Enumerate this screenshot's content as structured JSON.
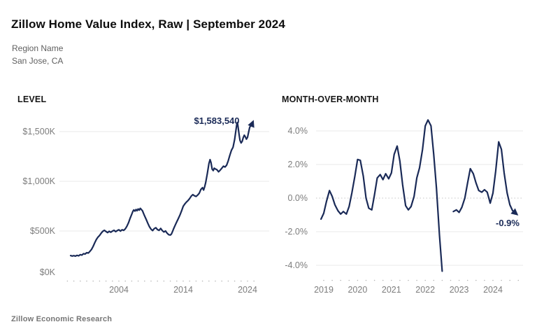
{
  "header": {
    "title": "Zillow Home Value Index, Raw | September 2024",
    "region_label": "Region Name",
    "region_value": "San Jose, CA"
  },
  "footer": {
    "source": "Zillow Economic Research"
  },
  "colors": {
    "line": "#1a2a57",
    "grid": "#eaeaea",
    "zero_line": "#c4c4c4",
    "tick_dot": "#b5b5b5",
    "axis_text": "#7d7d7d",
    "end_label": "#1a2a57"
  },
  "chart_data": [
    {
      "id": "level",
      "type": "line",
      "title": "LEVEL",
      "units": "USD thousands",
      "end_label": "$1,583,540",
      "end_value": 1583540,
      "x_range": [
        1996.5,
        2024.75
      ],
      "y_range": [
        0,
        1650
      ],
      "x_ticks": [
        2004,
        2014,
        2024
      ],
      "x_minor_tick_interval_years": 1,
      "y_ticks": [
        {
          "label": "$1,500K",
          "value": 1500,
          "line": true
        },
        {
          "label": "$1,000K",
          "value": 1000,
          "line": true
        },
        {
          "label": "$500K",
          "value": 500,
          "line": true
        },
        {
          "label": "$0K",
          "value": 0,
          "line": false
        }
      ],
      "segments": [
        [
          [
            1996.5,
            253
          ],
          [
            1996.75,
            248
          ],
          [
            1997.0,
            252
          ],
          [
            1997.25,
            247
          ],
          [
            1997.5,
            255
          ],
          [
            1997.75,
            250
          ],
          [
            1998.0,
            262
          ],
          [
            1998.25,
            258
          ],
          [
            1998.5,
            272
          ],
          [
            1998.75,
            268
          ],
          [
            1999.0,
            282
          ],
          [
            1999.25,
            278
          ],
          [
            1999.5,
            295
          ],
          [
            1999.75,
            315
          ],
          [
            2000.0,
            345
          ],
          [
            2000.25,
            382
          ],
          [
            2000.5,
            415
          ],
          [
            2000.75,
            438
          ],
          [
            2001.0,
            455
          ],
          [
            2001.25,
            478
          ],
          [
            2001.5,
            497
          ],
          [
            2001.75,
            507
          ],
          [
            2002.0,
            495
          ],
          [
            2002.25,
            484
          ],
          [
            2002.5,
            497
          ],
          [
            2002.75,
            487
          ],
          [
            2003.0,
            499
          ],
          [
            2003.25,
            507
          ],
          [
            2003.5,
            494
          ],
          [
            2003.75,
            504
          ],
          [
            2004.0,
            512
          ],
          [
            2004.25,
            499
          ],
          [
            2004.5,
            513
          ],
          [
            2004.75,
            506
          ],
          [
            2005.0,
            522
          ],
          [
            2005.25,
            548
          ],
          [
            2005.5,
            583
          ],
          [
            2005.75,
            628
          ],
          [
            2006.0,
            668
          ],
          [
            2006.17,
            697
          ],
          [
            2006.33,
            712
          ],
          [
            2006.5,
            700
          ],
          [
            2006.67,
            716
          ],
          [
            2006.83,
            704
          ],
          [
            2007.0,
            722
          ],
          [
            2007.17,
            710
          ],
          [
            2007.33,
            728
          ],
          [
            2007.5,
            716
          ],
          [
            2007.67,
            703
          ],
          [
            2007.83,
            678
          ],
          [
            2008.0,
            652
          ],
          [
            2008.25,
            616
          ],
          [
            2008.5,
            578
          ],
          [
            2008.75,
            543
          ],
          [
            2009.0,
            518
          ],
          [
            2009.25,
            504
          ],
          [
            2009.5,
            524
          ],
          [
            2009.75,
            533
          ],
          [
            2010.0,
            514
          ],
          [
            2010.25,
            506
          ],
          [
            2010.5,
            526
          ],
          [
            2010.75,
            504
          ],
          [
            2011.0,
            490
          ],
          [
            2011.25,
            501
          ],
          [
            2011.5,
            478
          ],
          [
            2011.75,
            463
          ],
          [
            2012.0,
            459
          ],
          [
            2012.17,
            470
          ],
          [
            2012.33,
            492
          ],
          [
            2012.5,
            521
          ],
          [
            2012.75,
            558
          ],
          [
            2013.0,
            592
          ],
          [
            2013.25,
            626
          ],
          [
            2013.5,
            661
          ],
          [
            2013.75,
            703
          ],
          [
            2014.0,
            748
          ],
          [
            2014.25,
            772
          ],
          [
            2014.5,
            791
          ],
          [
            2014.75,
            806
          ],
          [
            2015.0,
            826
          ],
          [
            2015.25,
            851
          ],
          [
            2015.5,
            866
          ],
          [
            2015.75,
            854
          ],
          [
            2016.0,
            848
          ],
          [
            2016.25,
            861
          ],
          [
            2016.5,
            880
          ],
          [
            2016.75,
            918
          ],
          [
            2017.0,
            936
          ],
          [
            2017.17,
            912
          ],
          [
            2017.33,
            942
          ],
          [
            2017.5,
            988
          ],
          [
            2017.75,
            1078
          ],
          [
            2018.0,
            1178
          ],
          [
            2018.17,
            1218
          ],
          [
            2018.33,
            1188
          ],
          [
            2018.5,
            1122
          ],
          [
            2018.67,
            1108
          ],
          [
            2018.83,
            1132
          ],
          [
            2019.0,
            1124
          ],
          [
            2019.25,
            1116
          ],
          [
            2019.5,
            1096
          ],
          [
            2019.75,
            1112
          ],
          [
            2020.0,
            1132
          ],
          [
            2020.25,
            1152
          ],
          [
            2020.5,
            1144
          ],
          [
            2020.75,
            1162
          ],
          [
            2021.0,
            1206
          ],
          [
            2021.25,
            1262
          ],
          [
            2021.5,
            1312
          ],
          [
            2021.75,
            1342
          ],
          [
            2022.0,
            1422
          ],
          [
            2022.17,
            1502
          ],
          [
            2022.33,
            1572
          ],
          [
            2022.42,
            1592
          ],
          [
            2022.5,
            1562
          ],
          [
            2022.67,
            1478
          ],
          [
            2022.83,
            1412
          ],
          [
            2023.0,
            1386
          ],
          [
            2023.17,
            1402
          ],
          [
            2023.33,
            1438
          ],
          [
            2023.5,
            1464
          ],
          [
            2023.67,
            1446
          ],
          [
            2023.83,
            1424
          ],
          [
            2024.0,
            1442
          ],
          [
            2024.17,
            1496
          ],
          [
            2024.33,
            1540
          ],
          [
            2024.5,
            1562
          ],
          [
            2024.67,
            1572
          ],
          [
            2024.75,
            1584
          ]
        ]
      ]
    },
    {
      "id": "mom",
      "type": "line",
      "title": "MONTH-OVER-MONTH",
      "units": "percent",
      "end_label": "-0.9%",
      "end_value": -0.9,
      "x_range": [
        2018.9,
        2024.75
      ],
      "y_range": [
        -4.6,
        4.9
      ],
      "x_ticks": [
        2019,
        2020,
        2021,
        2022,
        2023,
        2024
      ],
      "x_minor_tick_interval_years": 0.25,
      "y_ticks": [
        {
          "label": "4.0%",
          "value": 4,
          "line": true
        },
        {
          "label": "2.0%",
          "value": 2,
          "line": true
        },
        {
          "label": "0.0%",
          "value": 0,
          "line": "dotted"
        },
        {
          "label": "-2.0%",
          "value": -2,
          "line": true
        },
        {
          "label": "-4.0%",
          "value": -4,
          "line": true
        }
      ],
      "segments": [
        [
          [
            2018.92,
            -1.25
          ],
          [
            2019.0,
            -0.9
          ],
          [
            2019.08,
            -0.2
          ],
          [
            2019.17,
            0.45
          ],
          [
            2019.25,
            0.1
          ],
          [
            2019.33,
            -0.4
          ],
          [
            2019.42,
            -0.75
          ],
          [
            2019.5,
            -0.95
          ],
          [
            2019.58,
            -0.8
          ],
          [
            2019.67,
            -0.95
          ],
          [
            2019.75,
            -0.5
          ],
          [
            2019.83,
            0.3
          ],
          [
            2019.92,
            1.3
          ],
          [
            2020.0,
            2.3
          ],
          [
            2020.08,
            2.25
          ],
          [
            2020.17,
            1.3
          ],
          [
            2020.25,
            0.0
          ],
          [
            2020.33,
            -0.6
          ],
          [
            2020.42,
            -0.7
          ],
          [
            2020.5,
            0.2
          ],
          [
            2020.58,
            1.2
          ],
          [
            2020.67,
            1.4
          ],
          [
            2020.75,
            1.1
          ],
          [
            2020.83,
            1.45
          ],
          [
            2020.92,
            1.15
          ],
          [
            2021.0,
            1.5
          ],
          [
            2021.08,
            2.6
          ],
          [
            2021.17,
            3.1
          ],
          [
            2021.25,
            2.2
          ],
          [
            2021.33,
            0.8
          ],
          [
            2021.42,
            -0.45
          ],
          [
            2021.5,
            -0.7
          ],
          [
            2021.58,
            -0.5
          ],
          [
            2021.67,
            0.1
          ],
          [
            2021.75,
            1.2
          ],
          [
            2021.83,
            1.8
          ],
          [
            2021.92,
            2.9
          ],
          [
            2022.0,
            4.3
          ],
          [
            2022.08,
            4.65
          ],
          [
            2022.17,
            4.3
          ],
          [
            2022.25,
            2.6
          ],
          [
            2022.33,
            0.6
          ],
          [
            2022.42,
            -2.2
          ],
          [
            2022.5,
            -4.35
          ]
        ],
        [
          [
            2022.83,
            -0.8
          ],
          [
            2022.92,
            -0.7
          ],
          [
            2023.0,
            -0.85
          ],
          [
            2023.08,
            -0.55
          ],
          [
            2023.17,
            0.0
          ],
          [
            2023.25,
            0.9
          ],
          [
            2023.33,
            1.75
          ],
          [
            2023.42,
            1.45
          ],
          [
            2023.5,
            0.9
          ],
          [
            2023.58,
            0.45
          ],
          [
            2023.67,
            0.35
          ],
          [
            2023.75,
            0.5
          ],
          [
            2023.83,
            0.35
          ],
          [
            2023.92,
            -0.3
          ],
          [
            2024.0,
            0.3
          ],
          [
            2024.08,
            1.6
          ],
          [
            2024.17,
            3.35
          ],
          [
            2024.25,
            2.9
          ],
          [
            2024.33,
            1.5
          ],
          [
            2024.42,
            0.3
          ],
          [
            2024.5,
            -0.4
          ],
          [
            2024.58,
            -0.75
          ],
          [
            2024.67,
            -0.9
          ]
        ]
      ]
    }
  ]
}
